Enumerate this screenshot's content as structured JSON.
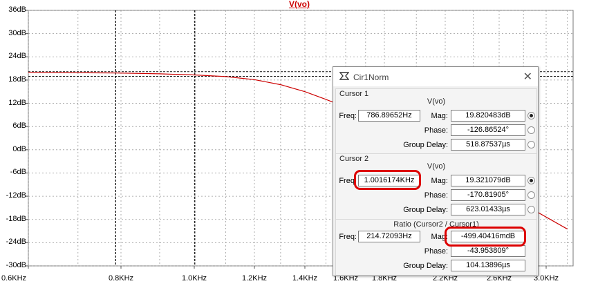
{
  "chart_data": {
    "type": "line",
    "title": "V(vo)",
    "xlabel": "",
    "ylabel": "",
    "x_scale": "log",
    "xlim_hz": [
      600,
      3200
    ],
    "ylim": [
      -30,
      36
    ],
    "y_ticks": [
      "36dB",
      "30dB",
      "24dB",
      "18dB",
      "12dB",
      "6dB",
      "0dB",
      "-6dB",
      "-12dB",
      "-18dB",
      "-24dB",
      "-30dB"
    ],
    "x_ticks": [
      "0.6KHz",
      "0.8KHz",
      "1.0KHz",
      "1.2KHz",
      "1.4KHz",
      "1.6KHz",
      "1.8KHz",
      "2.2KHz",
      "2.6KHz",
      "3.0KHz"
    ],
    "grid": true,
    "series": [
      {
        "name": "V(vo)",
        "color": "#cc0000",
        "x_hz": [
          600,
          700,
          786.9,
          900,
          1000,
          1100,
          1200,
          1300,
          1400,
          1500,
          1600,
          1800,
          2000,
          2200,
          2600,
          3200
        ],
        "y_db": [
          20.0,
          19.9,
          19.82,
          19.6,
          19.32,
          18.9,
          18.1,
          16.8,
          15.0,
          13.0,
          11.0,
          6.5,
          2.0,
          -2.5,
          -10.5,
          -20.5
        ]
      }
    ],
    "cursors_hz": [
      786.89652,
      1001.6174
    ]
  },
  "dialog": {
    "title": "Cir1Norm",
    "cursor1": {
      "group_label": "Cursor 1",
      "trace": "V(vo)",
      "freq_label": "Freq:",
      "freq": "786.89652Hz",
      "mag_label": "Mag:",
      "mag": "19.820483dB",
      "phase_label": "Phase:",
      "phase": "-126.86524°",
      "gd_label": "Group Delay:",
      "gd": "518.87537µs"
    },
    "cursor2": {
      "group_label": "Cursor 2",
      "trace": "V(vo)",
      "freq_label": "Freq:",
      "freq": "1.0016174KHz",
      "mag_label": "Mag:",
      "mag": "19.321079dB",
      "phase_label": "Phase:",
      "phase": "-170.81905°",
      "gd_label": "Group Delay:",
      "gd": "623.01433µs"
    },
    "ratio": {
      "header": "Ratio (Cursor2 / Cursor1)",
      "freq_label": "Freq:",
      "freq": "214.72093Hz",
      "mag_label": "Mag:",
      "mag": "-499.40416mdB",
      "phase_label": "Phase:",
      "phase": "-43.953809°",
      "gd_label": "Group Delay:",
      "gd": "104.13896µs"
    }
  }
}
